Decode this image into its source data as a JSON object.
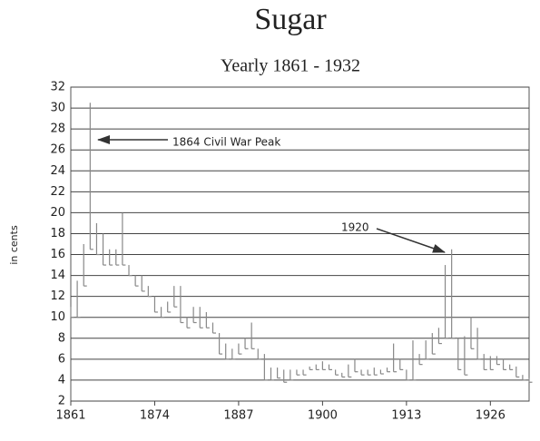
{
  "chart_data": {
    "type": "highlow",
    "title": "Sugar",
    "subtitle": "Yearly 1861 - 1932",
    "y_label": "in cents",
    "annotations": [
      "1864 Civil War Peak",
      "1920"
    ],
    "x": [
      1861,
      1862,
      1863,
      1864,
      1865,
      1866,
      1867,
      1868,
      1869,
      1870,
      1871,
      1872,
      1873,
      1874,
      1875,
      1876,
      1877,
      1878,
      1879,
      1880,
      1881,
      1882,
      1883,
      1884,
      1885,
      1886,
      1887,
      1888,
      1889,
      1890,
      1891,
      1892,
      1893,
      1894,
      1895,
      1896,
      1897,
      1898,
      1899,
      1900,
      1901,
      1902,
      1903,
      1904,
      1905,
      1906,
      1907,
      1908,
      1909,
      1910,
      1911,
      1912,
      1913,
      1914,
      1915,
      1916,
      1917,
      1918,
      1919,
      1920,
      1921,
      1922,
      1923,
      1924,
      1925,
      1926,
      1927,
      1928,
      1929,
      1930,
      1931,
      1932
    ],
    "high": [
      11,
      13.5,
      17,
      30.5,
      19,
      18,
      16.5,
      16.5,
      20,
      15,
      14,
      14,
      13,
      12,
      11,
      11.5,
      13,
      13,
      10,
      11,
      11,
      10.5,
      9.5,
      8.5,
      7.5,
      7,
      7.5,
      8,
      9.5,
      7,
      6.5,
      5.2,
      5.2,
      5,
      5,
      5,
      5,
      5.3,
      5.5,
      5.8,
      5.5,
      5,
      4.7,
      5.5,
      6,
      5,
      5,
      5.2,
      5,
      5.2,
      7.5,
      6,
      5,
      7.8,
      6.5,
      7.8,
      8.5,
      9,
      15,
      16.5,
      8,
      8.2,
      10,
      9,
      6.5,
      6.3,
      6.3,
      6,
      5.5,
      5.3,
      4.5,
      4.2
    ],
    "low": [
      10,
      10,
      13,
      16.5,
      16,
      15,
      15,
      15,
      15,
      14,
      13,
      12.5,
      12,
      10.5,
      10,
      10.5,
      11,
      9.5,
      9,
      9.5,
      9,
      9,
      8.5,
      6.5,
      6,
      6,
      6.5,
      7,
      7,
      6,
      4,
      4,
      4.2,
      3.8,
      4,
      4.5,
      4.5,
      5,
      5,
      5,
      5,
      4.5,
      4.3,
      4.3,
      4.8,
      4.5,
      4.5,
      4.5,
      4.6,
      4.8,
      4.8,
      5,
      4,
      4,
      5.5,
      6,
      6.5,
      7.5,
      8,
      8,
      5,
      4.5,
      7,
      6,
      5,
      5,
      5.5,
      5,
      5,
      4.3,
      4,
      3.8
    ],
    "color": "#888888",
    "xlim": [
      1861,
      1932
    ],
    "xticks": [
      1861,
      1874,
      1887,
      1900,
      1913,
      1926
    ],
    "ylim": [
      2,
      32
    ],
    "yticks": [
      2,
      4,
      6,
      8,
      10,
      12,
      14,
      16,
      18,
      20,
      22,
      24,
      26,
      28,
      30,
      32
    ],
    "grid": true
  }
}
